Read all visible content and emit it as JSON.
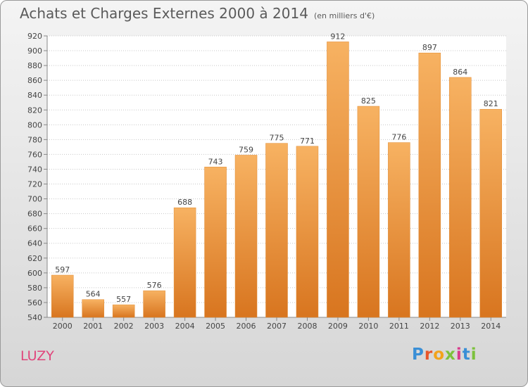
{
  "title": "Achats et Charges Externes 2000 à 2014",
  "subtitle": "(en milliers d'€)",
  "city": "LUZY",
  "logo": {
    "letters": [
      "P",
      "r",
      "o",
      "x",
      "i",
      "t",
      "i"
    ],
    "colors": [
      "#3a8fd6",
      "#e8562a",
      "#f2a31b",
      "#7cc13c",
      "#d83a8c",
      "#3a8fd6",
      "#7cc13c"
    ]
  },
  "colors": {
    "bar": "#f0953a",
    "bar_light": "#f7b262",
    "bar_dark": "#d8751f",
    "grid": "#c8c8c8",
    "text": "#444444",
    "city": "#e0457b"
  },
  "chart_data": {
    "type": "bar",
    "title": "Achats et Charges Externes 2000 à 2014",
    "subtitle": "(en milliers d'€)",
    "categories": [
      "2000",
      "2001",
      "2002",
      "2003",
      "2004",
      "2005",
      "2006",
      "2007",
      "2008",
      "2009",
      "2010",
      "2011",
      "2012",
      "2013",
      "2014"
    ],
    "values": [
      597,
      564,
      557,
      576,
      688,
      743,
      759,
      775,
      771,
      912,
      825,
      776,
      897,
      864,
      821
    ],
    "ylim": [
      540,
      920
    ],
    "yticks": [
      540,
      560,
      580,
      600,
      620,
      640,
      660,
      680,
      700,
      720,
      740,
      760,
      780,
      800,
      820,
      840,
      860,
      880,
      900,
      920
    ],
    "grid": true
  }
}
